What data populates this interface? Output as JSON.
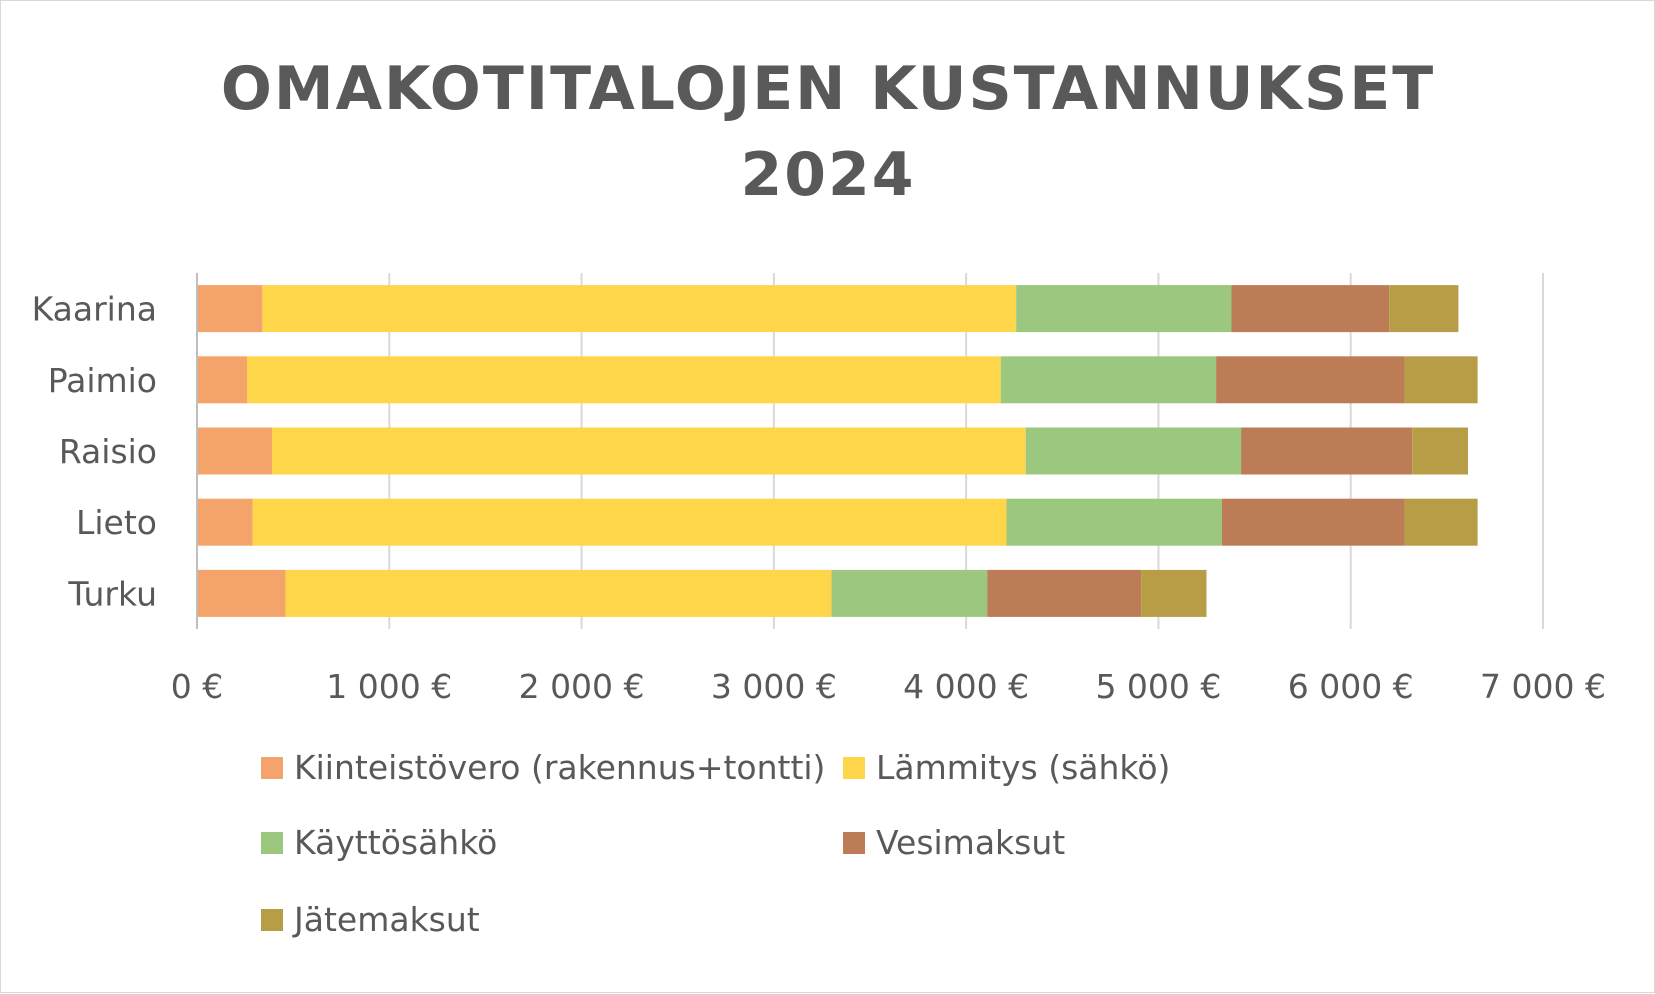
{
  "chart_data": {
    "type": "bar",
    "orientation": "horizontal",
    "stacked": true,
    "title": "OMAKOTITALOJEN KUSTANNUKSET",
    "subtitle": "2024",
    "categories": [
      "Kaarina",
      "Paimio",
      "Raisio",
      "Lieto",
      "Turku"
    ],
    "series": [
      {
        "name": "Kiinteistövero (rakennus+tontti)",
        "color": "#F4A46A",
        "values": [
          340,
          260,
          390,
          290,
          460
        ]
      },
      {
        "name": "Lämmitys (sähkö)",
        "color": "#FFD54A",
        "values": [
          3920,
          3920,
          3920,
          3920,
          2840
        ]
      },
      {
        "name": "Käyttösähkö",
        "color": "#9CC77F",
        "values": [
          1120,
          1120,
          1120,
          1120,
          810
        ]
      },
      {
        "name": "Vesimaksut",
        "color": "#BC7C55",
        "values": [
          820,
          980,
          890,
          950,
          800
        ]
      },
      {
        "name": "Jätemaksut",
        "color": "#B89D47",
        "values": [
          360,
          380,
          290,
          380,
          340
        ]
      }
    ],
    "x_ticks": [
      "0 €",
      "1 000 €",
      "2 000 €",
      "3 000 €",
      "4 000 €",
      "5 000 €",
      "6 000 €",
      "7 000 €"
    ],
    "xlim": [
      0,
      7000
    ],
    "grid": true,
    "legend_position": "bottom"
  }
}
